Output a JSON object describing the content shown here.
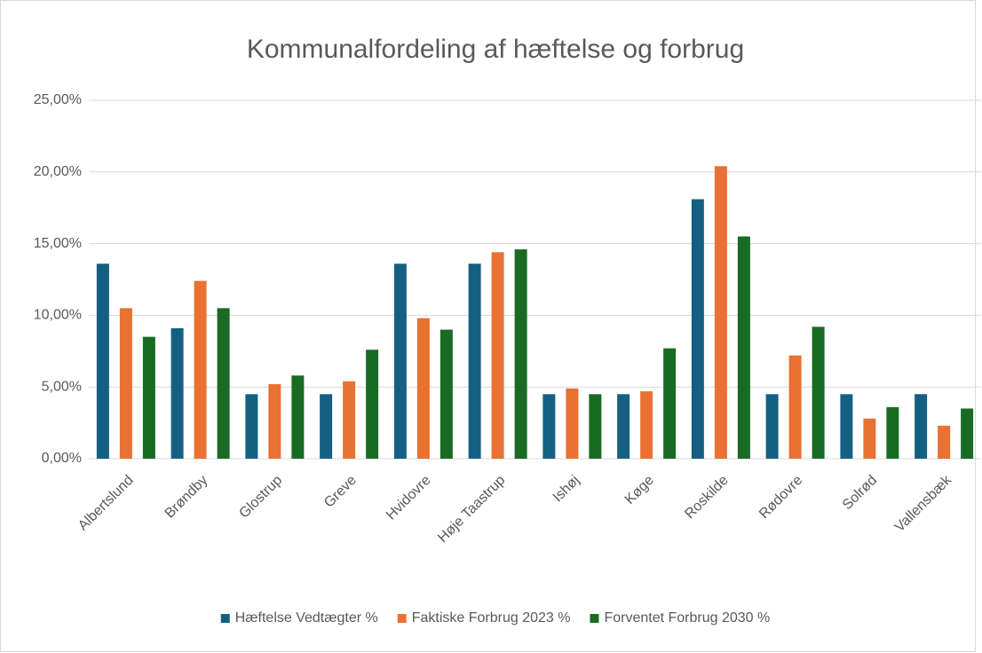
{
  "chart_data": {
    "type": "bar",
    "title": "Kommunalfordeling af hæftelse og forbrug",
    "categories": [
      "Albertslund",
      "Brøndby",
      "Glostrup",
      "Greve",
      "Hvidovre",
      "Høje Taastrup",
      "Ishøj",
      "Køge",
      "Roskilde",
      "Rødovre",
      "Solrød",
      "Vallensbæk"
    ],
    "series": [
      {
        "name": "Hæftelse Vedtægter %",
        "color": "#156082",
        "values": [
          13.6,
          9.1,
          4.5,
          4.5,
          13.6,
          13.6,
          4.5,
          4.5,
          18.1,
          4.5,
          4.5,
          4.5
        ]
      },
      {
        "name": "Faktiske Forbrug 2023 %",
        "color": "#e97132",
        "values": [
          10.5,
          12.4,
          5.2,
          5.4,
          9.8,
          14.4,
          4.9,
          4.7,
          20.4,
          7.2,
          2.8,
          2.3
        ]
      },
      {
        "name": "Forventet Forbrug 2030 %",
        "color": "#196b24",
        "values": [
          8.5,
          10.5,
          5.8,
          7.6,
          9.0,
          14.6,
          4.5,
          7.7,
          15.5,
          9.2,
          3.6,
          3.5
        ]
      }
    ],
    "ylim": [
      0,
      25
    ],
    "yticks": [
      {
        "value": 0,
        "label": "0,00%"
      },
      {
        "value": 5,
        "label": "5,00%"
      },
      {
        "value": 10,
        "label": "10,00%"
      },
      {
        "value": 15,
        "label": "15,00%"
      },
      {
        "value": 20,
        "label": "20,00%"
      },
      {
        "value": 25,
        "label": "25,00%"
      }
    ],
    "grid": true,
    "legend": "bottom"
  }
}
